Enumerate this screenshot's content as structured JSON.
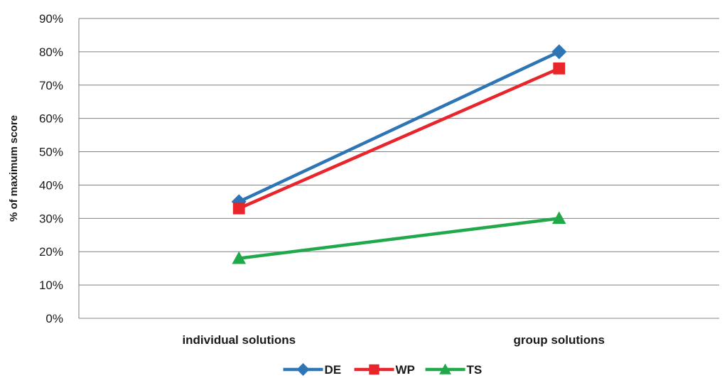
{
  "chart_data": {
    "type": "line",
    "categories": [
      "individual solutions",
      "group solutions"
    ],
    "series": [
      {
        "name": "DE",
        "values": [
          35,
          80
        ],
        "color": "#2E75B6",
        "marker": "diamond"
      },
      {
        "name": "WP",
        "values": [
          33,
          75
        ],
        "color": "#E8252B",
        "marker": "square"
      },
      {
        "name": "TS",
        "values": [
          18,
          30
        ],
        "color": "#21A84A",
        "marker": "triangle"
      }
    ],
    "ylabel": "% of maximum score",
    "xlabel": "",
    "ylim": [
      0,
      90
    ],
    "yticks": [
      0,
      10,
      20,
      30,
      40,
      50,
      60,
      70,
      80,
      90
    ],
    "ytick_format": "%",
    "grid": true,
    "legend_position": "bottom"
  }
}
